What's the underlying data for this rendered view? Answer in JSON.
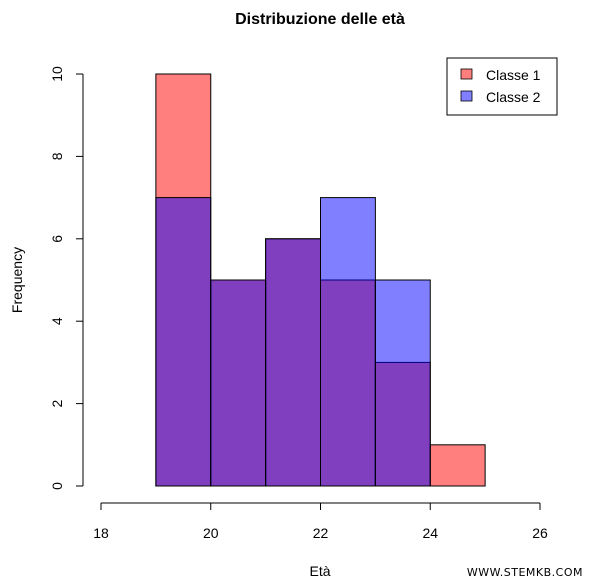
{
  "chart_data": {
    "type": "bar",
    "subtype": "overlapping-histogram",
    "title": "Distribuzione delle età",
    "xlabel": "Età",
    "ylabel": "Frequency",
    "xlim": [
      18,
      26
    ],
    "ylim": [
      0,
      10
    ],
    "x_ticks": [
      18,
      20,
      22,
      24,
      26
    ],
    "y_ticks": [
      0,
      2,
      4,
      6,
      8,
      10
    ],
    "bins": [
      [
        19,
        20
      ],
      [
        20,
        21
      ],
      [
        21,
        22
      ],
      [
        22,
        23
      ],
      [
        23,
        24
      ],
      [
        24,
        25
      ]
    ],
    "categories": [
      "19-20",
      "20-21",
      "21-22",
      "22-23",
      "23-24",
      "24-25"
    ],
    "series": [
      {
        "name": "Classe 1",
        "values": [
          10,
          5,
          6,
          5,
          3,
          1
        ],
        "color": "#FF8080",
        "fill": "rgba(255,0,0,0.5)"
      },
      {
        "name": "Classe 2",
        "values": [
          7,
          5,
          6,
          7,
          5,
          0
        ],
        "color": "#8080FF",
        "fill": "rgba(0,0,255,0.5)"
      }
    ],
    "overlap_color": "#803EBF",
    "legend": {
      "position": "topright",
      "entries": [
        "Classe 1",
        "Classe 2"
      ]
    },
    "grid": false
  },
  "watermark": "WWW.STEMKB.COM"
}
